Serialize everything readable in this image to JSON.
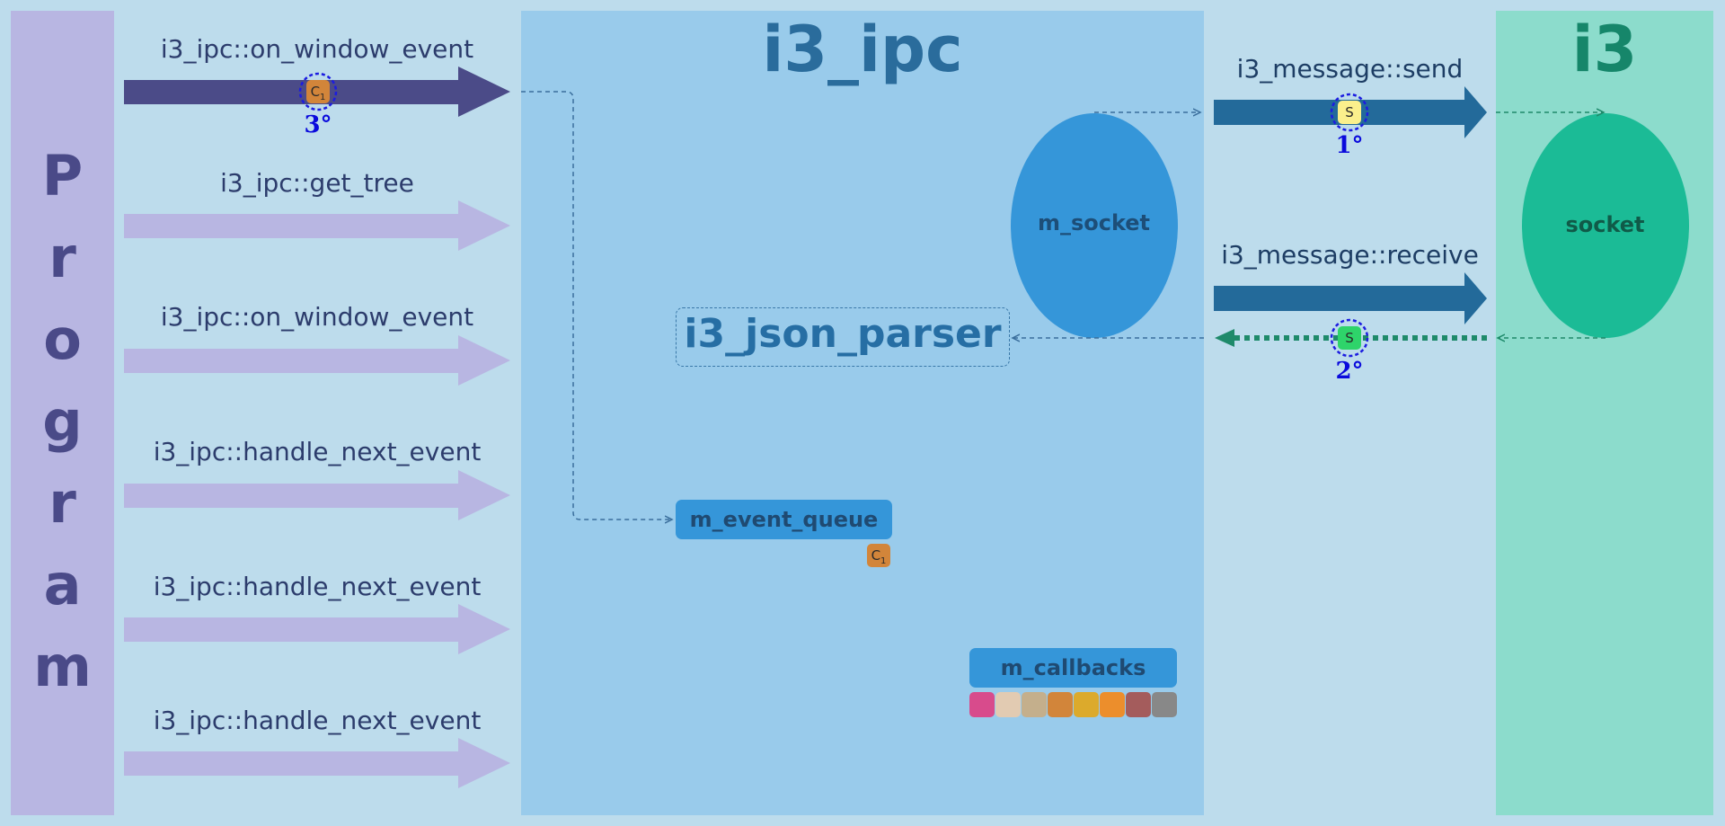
{
  "program": {
    "letters": [
      "P",
      "r",
      "o",
      "g",
      "r",
      "a",
      "m"
    ]
  },
  "ipc": {
    "title": "i3_ipc"
  },
  "i3": {
    "title": "i3"
  },
  "calls": [
    {
      "label": "i3_ipc::on_window_event",
      "active": true
    },
    {
      "label": "i3_ipc::get_tree",
      "active": false
    },
    {
      "label": "i3_ipc::on_window_event",
      "active": false
    },
    {
      "label": "i3_ipc::handle_next_event",
      "active": false
    },
    {
      "label": "i3_ipc::handle_next_event",
      "active": false
    },
    {
      "label": "i3_ipc::handle_next_event",
      "active": false
    }
  ],
  "messages": {
    "send_label": "i3_message::send",
    "receive_label": "i3_message::receive"
  },
  "components": {
    "m_socket": "m_socket",
    "socket": "socket",
    "json_parser": "i3_json_parser",
    "event_queue": "m_event_queue",
    "callbacks": "m_callbacks"
  },
  "tokens": {
    "c1": {
      "letter": "C",
      "subscript": "1",
      "color": "#d2853a"
    },
    "s_send": {
      "letter": "S",
      "color": "#fbf08c"
    },
    "s_receive": {
      "letter": "S",
      "color": "#2ed46a"
    }
  },
  "order": {
    "send": "1°",
    "receive": "2°",
    "event": "3°"
  },
  "callback_colors": [
    "#d84b8c",
    "#e2cbb2",
    "#c4af8c",
    "#d2853a",
    "#dcaa2c",
    "#ec8e2c",
    "#a45c5c",
    "#888888"
  ],
  "colors": {
    "active_call": "#4b4b88",
    "inactive_call": "#b8b6e2",
    "message_arrow": "#236a9a",
    "receive_dotted": "#1e8a6a",
    "m_socket_fill": "#3596d9",
    "socket_fill": "#1bbb96"
  }
}
